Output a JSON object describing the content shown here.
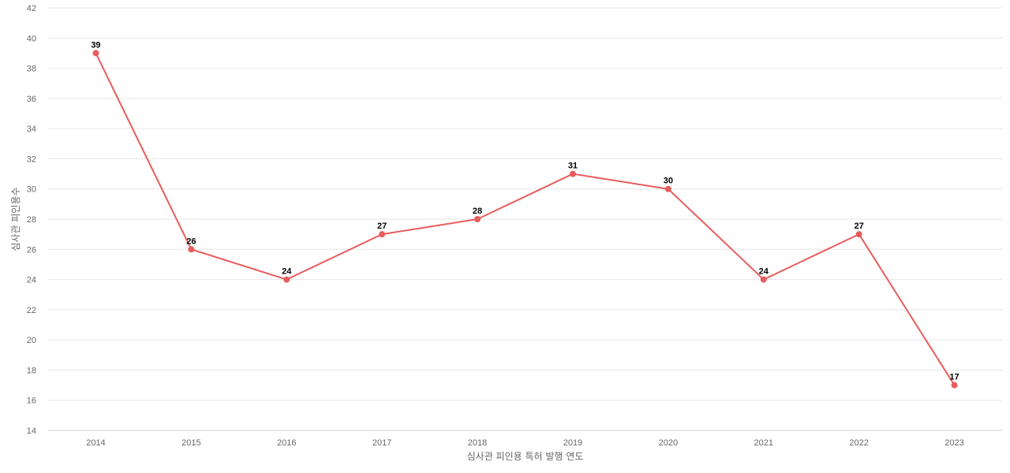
{
  "chart_data": {
    "type": "line",
    "title": "",
    "xlabel": "심사관 피인용 특허 발행 연도",
    "ylabel": "심사관 피인용수",
    "categories": [
      "2014",
      "2015",
      "2016",
      "2017",
      "2018",
      "2019",
      "2020",
      "2021",
      "2022",
      "2023"
    ],
    "series": [
      {
        "values": [
          39,
          26,
          24,
          27,
          28,
          31,
          30,
          24,
          27,
          17
        ],
        "color": "#e85c5c"
      }
    ],
    "ylim": [
      14,
      42
    ],
    "yticks": [
      14,
      16,
      18,
      20,
      22,
      24,
      26,
      28,
      30,
      32,
      34,
      36,
      38,
      40,
      42
    ],
    "grid": true,
    "legend": "none",
    "data_labels": true
  }
}
